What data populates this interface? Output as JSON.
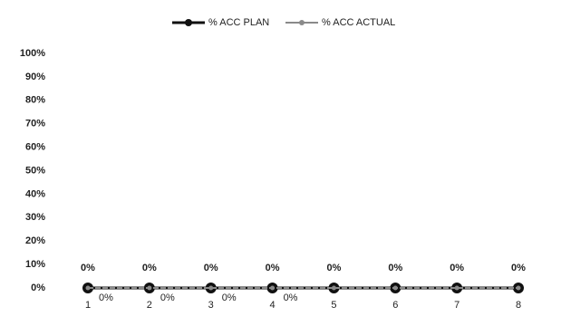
{
  "chart_data": {
    "type": "line",
    "categories": [
      "1",
      "2",
      "3",
      "4",
      "5",
      "6",
      "7",
      "8"
    ],
    "series": [
      {
        "name": "% ACC PLAN",
        "color": "#111111",
        "values": [
          0,
          0,
          0,
          0,
          0,
          0,
          0,
          0
        ],
        "value_labels": [
          "0%",
          "0%",
          "0%",
          "0%",
          "0%",
          "0%",
          "0%",
          "0%"
        ]
      },
      {
        "name": "% ACC ACTUAL",
        "color": "#8a8a8a",
        "values": [
          0,
          0,
          0,
          0,
          0,
          0,
          0,
          0
        ],
        "value_labels": [
          "0%",
          "0%",
          "0%",
          "0%",
          null,
          null,
          null,
          null
        ]
      }
    ],
    "ylim": [
      0,
      100
    ],
    "yticks": [
      {
        "value": 0,
        "label": "0%"
      },
      {
        "value": 10,
        "label": "10%"
      },
      {
        "value": 20,
        "label": "20%"
      },
      {
        "value": 30,
        "label": "30%"
      },
      {
        "value": 40,
        "label": "40%"
      },
      {
        "value": 50,
        "label": "50%"
      },
      {
        "value": 60,
        "label": "60%"
      },
      {
        "value": 70,
        "label": "70%"
      },
      {
        "value": 80,
        "label": "80%"
      },
      {
        "value": 90,
        "label": "90%"
      },
      {
        "value": 100,
        "label": "100%"
      }
    ],
    "grid": false,
    "legend": "top"
  }
}
